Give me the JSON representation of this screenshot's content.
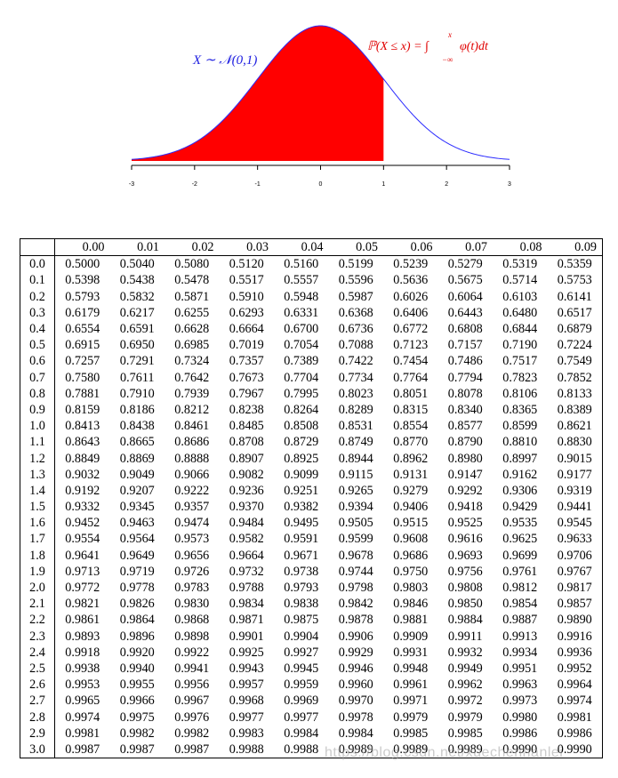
{
  "figure": {
    "distribution_label": "X ∼ 𝒩(0,1)",
    "cdf_label": "ℙ(X ≤ x) = ∫",
    "cdf_integrand": "φ(t)dt",
    "cdf_upper": "x",
    "cdf_lower": "−∞",
    "shaded_upper_x": 1,
    "x_range": [
      -3,
      3
    ],
    "x_ticks": [
      "-3",
      "-2",
      "-1",
      "0",
      "1",
      "2",
      "3"
    ],
    "curve_color": "#2a2aff",
    "fill_color": "#ff0000"
  },
  "table": {
    "columns": [
      "0.00",
      "0.01",
      "0.02",
      "0.03",
      "0.04",
      "0.05",
      "0.06",
      "0.07",
      "0.08",
      "0.09"
    ],
    "rows": [
      {
        "z": "0.0",
        "v": [
          "0.5000",
          "0.5040",
          "0.5080",
          "0.5120",
          "0.5160",
          "0.5199",
          "0.5239",
          "0.5279",
          "0.5319",
          "0.5359"
        ]
      },
      {
        "z": "0.1",
        "v": [
          "0.5398",
          "0.5438",
          "0.5478",
          "0.5517",
          "0.5557",
          "0.5596",
          "0.5636",
          "0.5675",
          "0.5714",
          "0.5753"
        ]
      },
      {
        "z": "0.2",
        "v": [
          "0.5793",
          "0.5832",
          "0.5871",
          "0.5910",
          "0.5948",
          "0.5987",
          "0.6026",
          "0.6064",
          "0.6103",
          "0.6141"
        ]
      },
      {
        "z": "0.3",
        "v": [
          "0.6179",
          "0.6217",
          "0.6255",
          "0.6293",
          "0.6331",
          "0.6368",
          "0.6406",
          "0.6443",
          "0.6480",
          "0.6517"
        ]
      },
      {
        "z": "0.4",
        "v": [
          "0.6554",
          "0.6591",
          "0.6628",
          "0.6664",
          "0.6700",
          "0.6736",
          "0.6772",
          "0.6808",
          "0.6844",
          "0.6879"
        ]
      },
      {
        "z": "0.5",
        "v": [
          "0.6915",
          "0.6950",
          "0.6985",
          "0.7019",
          "0.7054",
          "0.7088",
          "0.7123",
          "0.7157",
          "0.7190",
          "0.7224"
        ]
      },
      {
        "z": "0.6",
        "v": [
          "0.7257",
          "0.7291",
          "0.7324",
          "0.7357",
          "0.7389",
          "0.7422",
          "0.7454",
          "0.7486",
          "0.7517",
          "0.7549"
        ]
      },
      {
        "z": "0.7",
        "v": [
          "0.7580",
          "0.7611",
          "0.7642",
          "0.7673",
          "0.7704",
          "0.7734",
          "0.7764",
          "0.7794",
          "0.7823",
          "0.7852"
        ]
      },
      {
        "z": "0.8",
        "v": [
          "0.7881",
          "0.7910",
          "0.7939",
          "0.7967",
          "0.7995",
          "0.8023",
          "0.8051",
          "0.8078",
          "0.8106",
          "0.8133"
        ]
      },
      {
        "z": "0.9",
        "v": [
          "0.8159",
          "0.8186",
          "0.8212",
          "0.8238",
          "0.8264",
          "0.8289",
          "0.8315",
          "0.8340",
          "0.8365",
          "0.8389"
        ]
      },
      {
        "z": "1.0",
        "v": [
          "0.8413",
          "0.8438",
          "0.8461",
          "0.8485",
          "0.8508",
          "0.8531",
          "0.8554",
          "0.8577",
          "0.8599",
          "0.8621"
        ]
      },
      {
        "z": "1.1",
        "v": [
          "0.8643",
          "0.8665",
          "0.8686",
          "0.8708",
          "0.8729",
          "0.8749",
          "0.8770",
          "0.8790",
          "0.8810",
          "0.8830"
        ]
      },
      {
        "z": "1.2",
        "v": [
          "0.8849",
          "0.8869",
          "0.8888",
          "0.8907",
          "0.8925",
          "0.8944",
          "0.8962",
          "0.8980",
          "0.8997",
          "0.9015"
        ]
      },
      {
        "z": "1.3",
        "v": [
          "0.9032",
          "0.9049",
          "0.9066",
          "0.9082",
          "0.9099",
          "0.9115",
          "0.9131",
          "0.9147",
          "0.9162",
          "0.9177"
        ]
      },
      {
        "z": "1.4",
        "v": [
          "0.9192",
          "0.9207",
          "0.9222",
          "0.9236",
          "0.9251",
          "0.9265",
          "0.9279",
          "0.9292",
          "0.9306",
          "0.9319"
        ]
      },
      {
        "z": "1.5",
        "v": [
          "0.9332",
          "0.9345",
          "0.9357",
          "0.9370",
          "0.9382",
          "0.9394",
          "0.9406",
          "0.9418",
          "0.9429",
          "0.9441"
        ]
      },
      {
        "z": "1.6",
        "v": [
          "0.9452",
          "0.9463",
          "0.9474",
          "0.9484",
          "0.9495",
          "0.9505",
          "0.9515",
          "0.9525",
          "0.9535",
          "0.9545"
        ]
      },
      {
        "z": "1.7",
        "v": [
          "0.9554",
          "0.9564",
          "0.9573",
          "0.9582",
          "0.9591",
          "0.9599",
          "0.9608",
          "0.9616",
          "0.9625",
          "0.9633"
        ]
      },
      {
        "z": "1.8",
        "v": [
          "0.9641",
          "0.9649",
          "0.9656",
          "0.9664",
          "0.9671",
          "0.9678",
          "0.9686",
          "0.9693",
          "0.9699",
          "0.9706"
        ]
      },
      {
        "z": "1.9",
        "v": [
          "0.9713",
          "0.9719",
          "0.9726",
          "0.9732",
          "0.9738",
          "0.9744",
          "0.9750",
          "0.9756",
          "0.9761",
          "0.9767"
        ]
      },
      {
        "z": "2.0",
        "v": [
          "0.9772",
          "0.9778",
          "0.9783",
          "0.9788",
          "0.9793",
          "0.9798",
          "0.9803",
          "0.9808",
          "0.9812",
          "0.9817"
        ]
      },
      {
        "z": "2.1",
        "v": [
          "0.9821",
          "0.9826",
          "0.9830",
          "0.9834",
          "0.9838",
          "0.9842",
          "0.9846",
          "0.9850",
          "0.9854",
          "0.9857"
        ]
      },
      {
        "z": "2.2",
        "v": [
          "0.9861",
          "0.9864",
          "0.9868",
          "0.9871",
          "0.9875",
          "0.9878",
          "0.9881",
          "0.9884",
          "0.9887",
          "0.9890"
        ]
      },
      {
        "z": "2.3",
        "v": [
          "0.9893",
          "0.9896",
          "0.9898",
          "0.9901",
          "0.9904",
          "0.9906",
          "0.9909",
          "0.9911",
          "0.9913",
          "0.9916"
        ]
      },
      {
        "z": "2.4",
        "v": [
          "0.9918",
          "0.9920",
          "0.9922",
          "0.9925",
          "0.9927",
          "0.9929",
          "0.9931",
          "0.9932",
          "0.9934",
          "0.9936"
        ]
      },
      {
        "z": "2.5",
        "v": [
          "0.9938",
          "0.9940",
          "0.9941",
          "0.9943",
          "0.9945",
          "0.9946",
          "0.9948",
          "0.9949",
          "0.9951",
          "0.9952"
        ]
      },
      {
        "z": "2.6",
        "v": [
          "0.9953",
          "0.9955",
          "0.9956",
          "0.9957",
          "0.9959",
          "0.9960",
          "0.9961",
          "0.9962",
          "0.9963",
          "0.9964"
        ]
      },
      {
        "z": "2.7",
        "v": [
          "0.9965",
          "0.9966",
          "0.9967",
          "0.9968",
          "0.9969",
          "0.9970",
          "0.9971",
          "0.9972",
          "0.9973",
          "0.9974"
        ]
      },
      {
        "z": "2.8",
        "v": [
          "0.9974",
          "0.9975",
          "0.9976",
          "0.9977",
          "0.9977",
          "0.9978",
          "0.9979",
          "0.9979",
          "0.9980",
          "0.9981"
        ]
      },
      {
        "z": "2.9",
        "v": [
          "0.9981",
          "0.9982",
          "0.9982",
          "0.9983",
          "0.9984",
          "0.9984",
          "0.9985",
          "0.9985",
          "0.9986",
          "0.9986"
        ]
      },
      {
        "z": "3.0",
        "v": [
          "0.9987",
          "0.9987",
          "0.9987",
          "0.9988",
          "0.9988",
          "0.9989",
          "0.9989",
          "0.9989",
          "0.9990",
          "0.9990"
        ]
      }
    ]
  },
  "watermark": "https://blog.csdn.net/xuechenhanlei"
}
